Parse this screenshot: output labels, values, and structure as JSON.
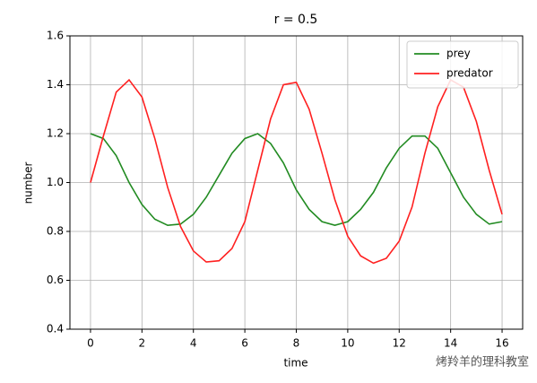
{
  "chart_data": {
    "type": "line",
    "title": "r = 0.5",
    "x_label": "time",
    "y_label": "number",
    "x": [
      0,
      0.5,
      1,
      1.5,
      2,
      2.5,
      3,
      3.5,
      4,
      4.5,
      5,
      5.5,
      6,
      6.5,
      7,
      7.5,
      8,
      8.5,
      9,
      9.5,
      10,
      10.5,
      11,
      11.5,
      12,
      12.5,
      13,
      13.5,
      14,
      14.5,
      15,
      15.5,
      16
    ],
    "series": [
      {
        "name": "prey",
        "color": "#228b22",
        "values": [
          1.2,
          1.18,
          1.11,
          1.0,
          0.91,
          0.85,
          0.825,
          0.83,
          0.87,
          0.94,
          1.03,
          1.12,
          1.18,
          1.2,
          1.16,
          1.08,
          0.97,
          0.89,
          0.84,
          0.825,
          0.84,
          0.89,
          0.96,
          1.06,
          1.14,
          1.19,
          1.19,
          1.14,
          1.04,
          0.94,
          0.87,
          0.83,
          0.84
        ]
      },
      {
        "name": "predator",
        "color": "#ff2020",
        "values": [
          1.0,
          1.19,
          1.37,
          1.42,
          1.35,
          1.18,
          0.98,
          0.82,
          0.72,
          0.675,
          0.68,
          0.73,
          0.84,
          1.05,
          1.26,
          1.4,
          1.41,
          1.3,
          1.12,
          0.93,
          0.78,
          0.7,
          0.67,
          0.69,
          0.76,
          0.9,
          1.12,
          1.31,
          1.42,
          1.39,
          1.25,
          1.05,
          0.87
        ]
      }
    ],
    "xlim": [
      -0.8,
      16.8
    ],
    "xticks": [
      0,
      2,
      4,
      6,
      8,
      10,
      12,
      14,
      16
    ],
    "ylim": [
      0.4,
      1.6
    ],
    "yticks": [
      0.4,
      0.6,
      0.8,
      {
        "value": 1,
        "label": "1.0"
      },
      1.2,
      1.4,
      1.6
    ],
    "grid": true,
    "legend": "upper right"
  },
  "watermark": "烤羚羊的理科教室"
}
